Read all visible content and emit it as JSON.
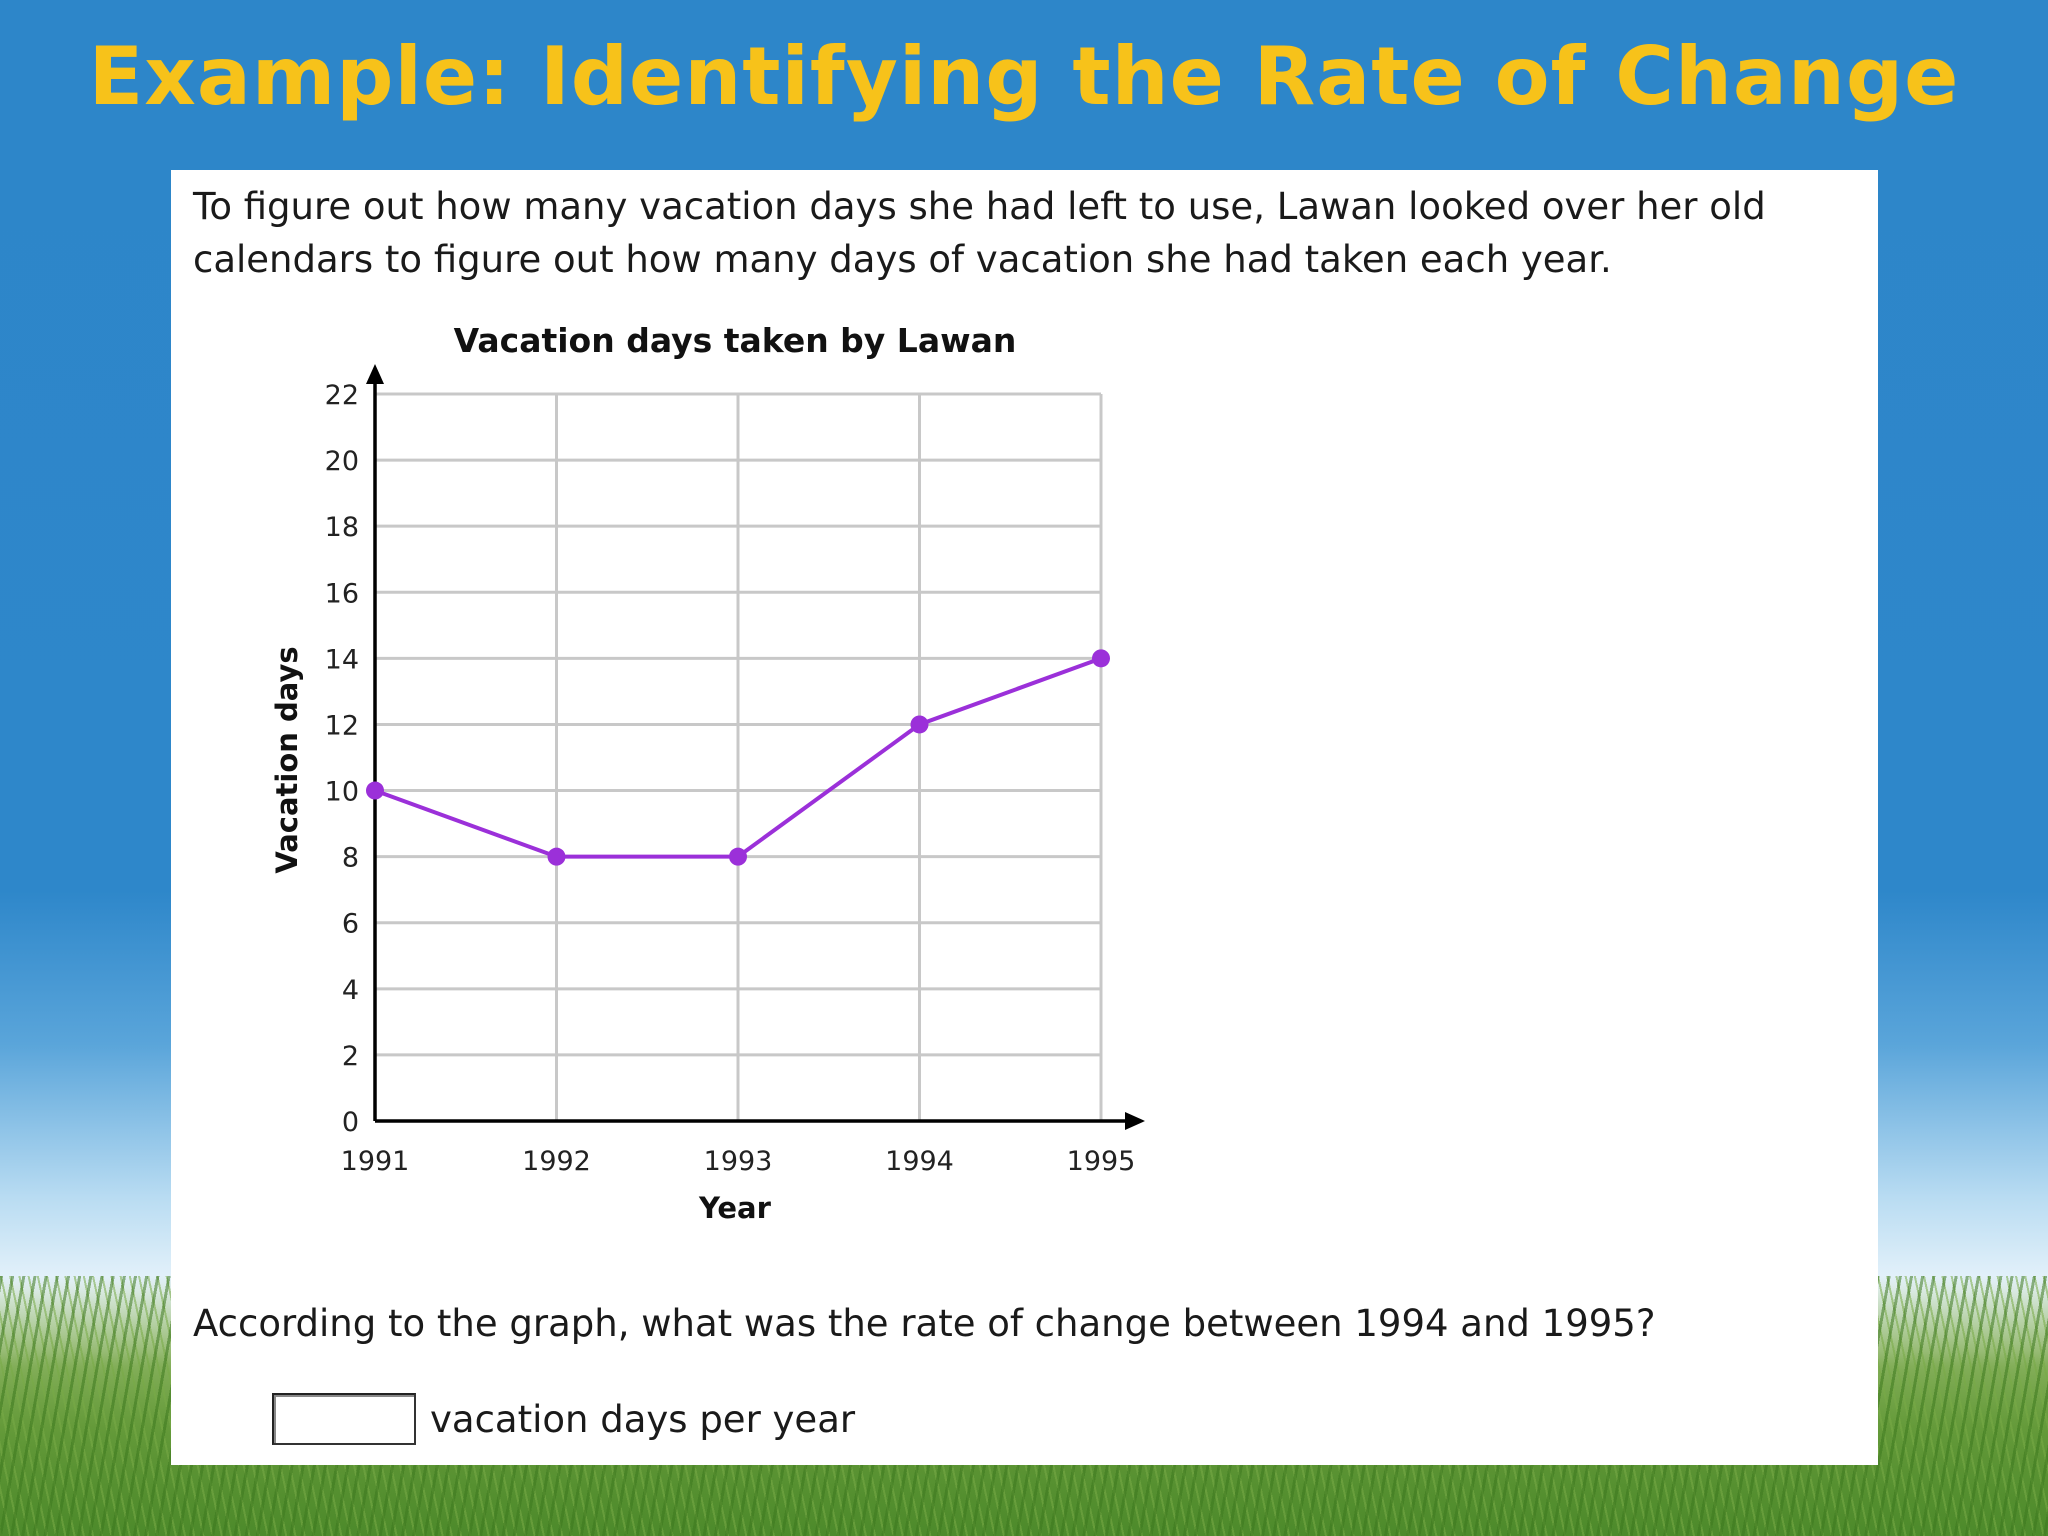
{
  "slide": {
    "title": "Example: Identifying the Rate of Change"
  },
  "problem": {
    "intro": "To figure out how many vacation days she had left to use, Lawan looked over her old calendars to figure out how many days of vacation she had taken each year.",
    "question": "According to the graph, what was the rate of change between 1994 and 1995?",
    "answer_value": "",
    "answer_unit": "vacation days per year"
  },
  "colors": {
    "title": "#f7c21a",
    "series": "#9b30d9",
    "grid": "#c8c8c8"
  },
  "chart_data": {
    "type": "line",
    "title": "Vacation days taken by Lawan",
    "xlabel": "Year",
    "ylabel": "Vacation days",
    "x": [
      "1991",
      "1992",
      "1993",
      "1994",
      "1995"
    ],
    "series": [
      {
        "values": [
          10,
          8,
          8,
          12,
          14
        ]
      }
    ],
    "ylim": [
      0,
      22
    ],
    "yticks": [
      "0",
      "2",
      "4",
      "6",
      "8",
      "10",
      "12",
      "14",
      "16",
      "18",
      "20",
      "22"
    ],
    "grid": true
  }
}
